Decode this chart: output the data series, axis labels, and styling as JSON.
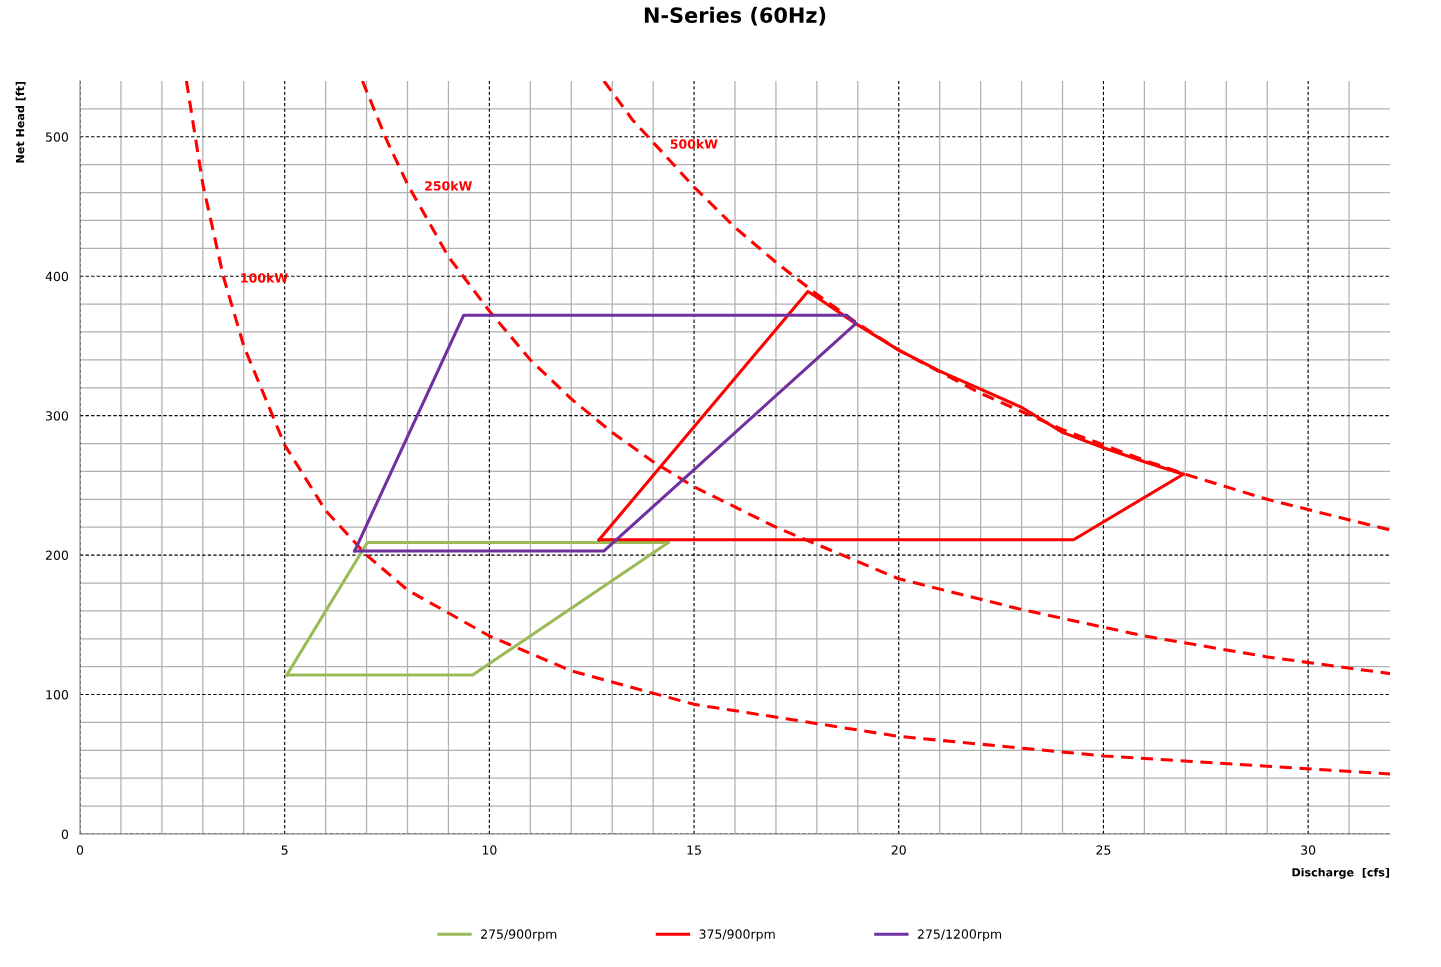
{
  "chart_data": {
    "type": "line",
    "title": "N-Series (60Hz)",
    "xlabel": "Discharge  [cfs]",
    "ylabel": "Net Head [ft]",
    "xlim": [
      0,
      32
    ],
    "ylim": [
      0,
      540
    ],
    "xticks": [
      0,
      {
        "value": 1,
        "label": null
      },
      {
        "value": 2,
        "label": null
      },
      {
        "value": 3,
        "label": null
      },
      {
        "value": 4,
        "label": null
      },
      5,
      {
        "value": 6,
        "label": null
      },
      {
        "value": 7,
        "label": null
      },
      {
        "value": 8,
        "label": null
      },
      {
        "value": 9,
        "label": null
      },
      10,
      {
        "value": 11,
        "label": null
      },
      {
        "value": 12,
        "label": null
      },
      {
        "value": 13,
        "label": null
      },
      {
        "value": 14,
        "label": null
      },
      15,
      {
        "value": 16,
        "label": null
      },
      {
        "value": 17,
        "label": null
      },
      {
        "value": 18,
        "label": null
      },
      {
        "value": 19,
        "label": null
      },
      20,
      {
        "value": 21,
        "label": null
      },
      {
        "value": 22,
        "label": null
      },
      {
        "value": 23,
        "label": null
      },
      {
        "value": 24,
        "label": null
      },
      25,
      {
        "value": 26,
        "label": null
      },
      {
        "value": 27,
        "label": null
      },
      {
        "value": 28,
        "label": null
      },
      {
        "value": 29,
        "label": null
      },
      30,
      {
        "value": 31,
        "label": null
      }
    ],
    "yticks": [
      0,
      {
        "value": 20,
        "label": null
      },
      {
        "value": 40,
        "label": null
      },
      {
        "value": 60,
        "label": null
      },
      {
        "value": 80,
        "label": null
      },
      100,
      {
        "value": 120,
        "label": null
      },
      {
        "value": 140,
        "label": null
      },
      {
        "value": 160,
        "label": null
      },
      {
        "value": 180,
        "label": null
      },
      200,
      {
        "value": 220,
        "label": null
      },
      {
        "value": 240,
        "label": null
      },
      {
        "value": 260,
        "label": null
      },
      {
        "value": 280,
        "label": null
      },
      300,
      {
        "value": 320,
        "label": null
      },
      {
        "value": 340,
        "label": null
      },
      {
        "value": 360,
        "label": null
      },
      {
        "value": 380,
        "label": null
      },
      400,
      {
        "value": 420,
        "label": null
      },
      {
        "value": 440,
        "label": null
      },
      {
        "value": 460,
        "label": null
      },
      {
        "value": 480,
        "label": null
      },
      500,
      {
        "value": 520,
        "label": null
      }
    ],
    "grid": true,
    "legend": "bottom",
    "marker": "none",
    "series": [
      {
        "name": "100kW",
        "color": "#ff0000",
        "line_style": "dashed",
        "x": [
          2.6,
          3,
          3.5,
          4,
          5,
          6,
          7,
          8,
          10,
          12,
          15,
          20,
          25,
          32
        ],
        "values": [
          540,
          466,
          400,
          350,
          279,
          232,
          200,
          175,
          142,
          117,
          93,
          70,
          56,
          43
        ]
      },
      {
        "name": "250kW",
        "color": "#ff0000",
        "line_style": "dashed",
        "x": [
          6.9,
          7.5,
          8,
          9,
          10,
          11,
          12,
          13,
          14,
          15,
          17,
          20,
          23,
          26,
          29,
          32
        ],
        "values": [
          540,
          497,
          466,
          414,
          375,
          340,
          312,
          288,
          267,
          249,
          220,
          183,
          161,
          142,
          127,
          115
        ]
      },
      {
        "name": "500kW",
        "color": "#ff0000",
        "line_style": "dashed",
        "x": [
          12.8,
          13.5,
          14,
          15,
          16,
          17,
          18,
          19,
          20,
          22,
          24,
          26,
          27,
          29,
          32
        ],
        "values": [
          540,
          512,
          496,
          464,
          435,
          410,
          387,
          366,
          347,
          316,
          290,
          268,
          258,
          240,
          218
        ]
      },
      {
        "name": "275/900rpm",
        "color": "#9bbb59",
        "line_style": "solid",
        "x": [
          5.05,
          7.02,
          14.37
        ],
        "values": [
          114,
          209,
          209
        ]
      },
      {
        "color": "#9bbb59",
        "line_style": "solid",
        "x": [
          5.05,
          9.59,
          14.37
        ],
        "values": [
          114,
          114,
          209
        ]
      },
      {
        "name": "375/900rpm",
        "color": "#ff0000",
        "line_style": "solid",
        "x": [
          12.68,
          17.78,
          18.0,
          18.95,
          20,
          21,
          22,
          23,
          24,
          25,
          26,
          26.95
        ],
        "values": [
          211,
          389,
          385,
          366,
          347,
          332,
          319,
          306,
          288,
          277,
          267,
          258
        ]
      },
      {
        "color": "#ff0000",
        "line_style": "solid",
        "x": [
          12.68,
          24.27,
          26.95
        ],
        "values": [
          211,
          211,
          258
        ]
      },
      {
        "name": "275/1200rpm",
        "color": "#7030a0",
        "line_style": "solid",
        "x": [
          6.71,
          9.37,
          18.73,
          18.95
        ],
        "values": [
          203,
          372,
          372,
          366
        ]
      },
      {
        "color": "#7030a0",
        "line_style": "solid",
        "x": [
          6.71,
          12.8,
          18.95
        ],
        "values": [
          203,
          203,
          366
        ]
      }
    ]
  }
}
